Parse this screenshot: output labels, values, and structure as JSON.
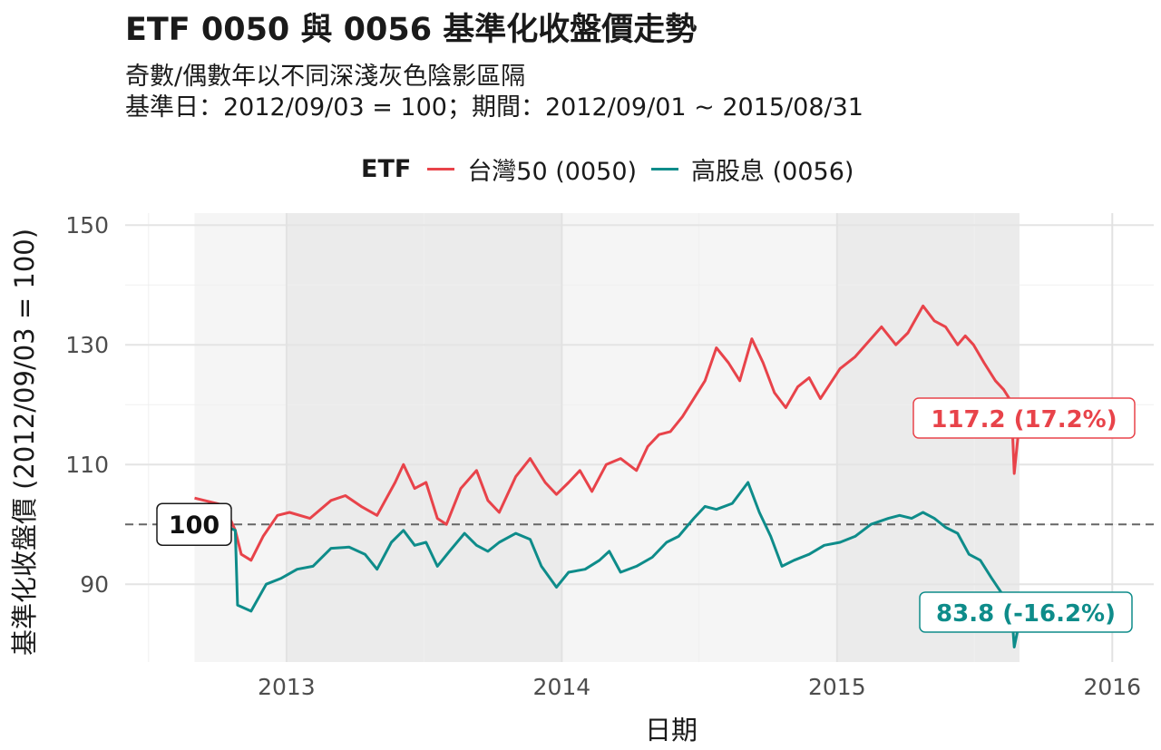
{
  "chart_data": {
    "type": "line",
    "title": "ETF 0050 與 0056 基準化收盤價走勢",
    "subtitle_lines": [
      "奇數/偶數年以不同深淺灰色陰影區隔",
      "基準日：2012/09/03 = 100；期間：2012/09/01 ~ 2015/08/31"
    ],
    "xlabel": "日期",
    "ylabel": "基準化收盤價 (2012/09/03 = 100)",
    "legend_title": "ETF",
    "legend_position": "top",
    "ylim": [
      77,
      152
    ],
    "xlim": [
      "2012-06-01",
      "2016-02-25"
    ],
    "y_ticks": [
      90,
      110,
      130,
      150
    ],
    "x_ticks": [
      "2013",
      "2014",
      "2015",
      "2016"
    ],
    "x_tick_dates": [
      "2013-01-01",
      "2014-01-01",
      "2015-01-01",
      "2016-01-01"
    ],
    "grid": true,
    "reference_line": {
      "y": 100,
      "label": "100",
      "style": "dashed"
    },
    "shaded_periods": [
      {
        "from": "2012-09-01",
        "to": "2012-12-31",
        "shade": "light"
      },
      {
        "from": "2013-01-01",
        "to": "2013-12-31",
        "shade": "dark"
      },
      {
        "from": "2014-01-01",
        "to": "2014-12-31",
        "shade": "light"
      },
      {
        "from": "2015-01-01",
        "to": "2015-08-31",
        "shade": "dark"
      }
    ],
    "series": [
      {
        "name": "台灣50 (0050)",
        "color": "#E8434A",
        "end_label": "117.2 (17.2%)",
        "points": [
          [
            "2012-09-01",
            104.4
          ],
          [
            "2012-09-20",
            103.8
          ],
          [
            "2012-10-10",
            103.2
          ],
          [
            "2012-10-25",
            99
          ],
          [
            "2012-11-02",
            95
          ],
          [
            "2012-11-15",
            94
          ],
          [
            "2012-12-01",
            98
          ],
          [
            "2012-12-20",
            101.5
          ],
          [
            "2013-01-05",
            102
          ],
          [
            "2013-02-01",
            101
          ],
          [
            "2013-03-01",
            104
          ],
          [
            "2013-03-20",
            104.8
          ],
          [
            "2013-04-10",
            103
          ],
          [
            "2013-05-01",
            101.5
          ],
          [
            "2013-05-25",
            107
          ],
          [
            "2013-06-05",
            110
          ],
          [
            "2013-06-20",
            106
          ],
          [
            "2013-07-05",
            107
          ],
          [
            "2013-07-20",
            101
          ],
          [
            "2013-08-01",
            100
          ],
          [
            "2013-08-20",
            106
          ],
          [
            "2013-09-10",
            109
          ],
          [
            "2013-09-25",
            104
          ],
          [
            "2013-10-10",
            102
          ],
          [
            "2013-11-01",
            108
          ],
          [
            "2013-11-20",
            111
          ],
          [
            "2013-12-10",
            107
          ],
          [
            "2013-12-25",
            105
          ],
          [
            "2014-01-10",
            107
          ],
          [
            "2014-01-25",
            109
          ],
          [
            "2014-02-10",
            105.5
          ],
          [
            "2014-03-01",
            110
          ],
          [
            "2014-03-20",
            111
          ],
          [
            "2014-04-10",
            109
          ],
          [
            "2014-04-25",
            113
          ],
          [
            "2014-05-10",
            115
          ],
          [
            "2014-05-25",
            115.5
          ],
          [
            "2014-06-10",
            118
          ],
          [
            "2014-06-25",
            121
          ],
          [
            "2014-07-10",
            124
          ],
          [
            "2014-07-25",
            129.5
          ],
          [
            "2014-08-10",
            127
          ],
          [
            "2014-08-25",
            124
          ],
          [
            "2014-09-10",
            131
          ],
          [
            "2014-09-25",
            127
          ],
          [
            "2014-10-10",
            122
          ],
          [
            "2014-10-25",
            119.5
          ],
          [
            "2014-11-10",
            123
          ],
          [
            "2014-11-25",
            124.5
          ],
          [
            "2014-12-10",
            121
          ],
          [
            "2015-01-05",
            126
          ],
          [
            "2015-01-25",
            128
          ],
          [
            "2015-02-15",
            131
          ],
          [
            "2015-03-01",
            133
          ],
          [
            "2015-03-20",
            130
          ],
          [
            "2015-04-05",
            132
          ],
          [
            "2015-04-25",
            136.5
          ],
          [
            "2015-05-10",
            134
          ],
          [
            "2015-05-25",
            133
          ],
          [
            "2015-06-10",
            130
          ],
          [
            "2015-06-20",
            131.5
          ],
          [
            "2015-07-01",
            130
          ],
          [
            "2015-07-15",
            127
          ],
          [
            "2015-07-30",
            124
          ],
          [
            "2015-08-10",
            122.5
          ],
          [
            "2015-08-20",
            120.5
          ],
          [
            "2015-08-24",
            108.5
          ],
          [
            "2015-08-31",
            117.2
          ]
        ]
      },
      {
        "name": "高股息 (0056)",
        "color": "#0E8C8A",
        "end_label": "83.8 (-16.2%)",
        "points": [
          [
            "2012-09-01",
            100
          ],
          [
            "2012-09-20",
            100.2
          ],
          [
            "2012-10-10",
            99.8
          ],
          [
            "2012-10-25",
            99
          ],
          [
            "2012-10-28",
            86.5
          ],
          [
            "2012-11-15",
            85.5
          ],
          [
            "2012-12-05",
            90
          ],
          [
            "2012-12-25",
            91
          ],
          [
            "2013-01-15",
            92.5
          ],
          [
            "2013-02-05",
            93
          ],
          [
            "2013-03-01",
            96
          ],
          [
            "2013-03-25",
            96.2
          ],
          [
            "2013-04-15",
            95
          ],
          [
            "2013-05-01",
            92.5
          ],
          [
            "2013-05-20",
            97
          ],
          [
            "2013-06-05",
            99
          ],
          [
            "2013-06-20",
            96.5
          ],
          [
            "2013-07-05",
            97
          ],
          [
            "2013-07-20",
            93
          ],
          [
            "2013-08-05",
            95.5
          ],
          [
            "2013-08-25",
            98.5
          ],
          [
            "2013-09-10",
            96.5
          ],
          [
            "2013-09-25",
            95.5
          ],
          [
            "2013-10-10",
            97
          ],
          [
            "2013-11-01",
            98.5
          ],
          [
            "2013-11-20",
            97.5
          ],
          [
            "2013-12-05",
            93
          ],
          [
            "2013-12-25",
            89.5
          ],
          [
            "2014-01-10",
            92
          ],
          [
            "2014-02-01",
            92.5
          ],
          [
            "2014-02-20",
            94
          ],
          [
            "2014-03-05",
            95.5
          ],
          [
            "2014-03-20",
            92
          ],
          [
            "2014-04-10",
            93
          ],
          [
            "2014-05-01",
            94.5
          ],
          [
            "2014-05-20",
            97
          ],
          [
            "2014-06-05",
            98
          ],
          [
            "2014-06-25",
            101
          ],
          [
            "2014-07-10",
            103
          ],
          [
            "2014-07-25",
            102.5
          ],
          [
            "2014-08-15",
            103.5
          ],
          [
            "2014-09-05",
            107
          ],
          [
            "2014-09-20",
            102
          ],
          [
            "2014-10-05",
            98
          ],
          [
            "2014-10-20",
            93
          ],
          [
            "2014-11-05",
            94
          ],
          [
            "2014-11-25",
            95
          ],
          [
            "2014-12-15",
            96.5
          ],
          [
            "2015-01-05",
            97
          ],
          [
            "2015-01-25",
            98
          ],
          [
            "2015-02-15",
            100
          ],
          [
            "2015-03-10",
            101
          ],
          [
            "2015-03-25",
            101.5
          ],
          [
            "2015-04-10",
            101
          ],
          [
            "2015-04-25",
            102
          ],
          [
            "2015-05-10",
            101
          ],
          [
            "2015-05-25",
            99.5
          ],
          [
            "2015-06-10",
            98.5
          ],
          [
            "2015-06-25",
            95
          ],
          [
            "2015-07-10",
            94
          ],
          [
            "2015-07-25",
            91
          ],
          [
            "2015-08-10",
            88
          ],
          [
            "2015-08-20",
            86.5
          ],
          [
            "2015-08-24",
            79.5
          ],
          [
            "2015-08-31",
            83.8
          ]
        ]
      }
    ]
  }
}
